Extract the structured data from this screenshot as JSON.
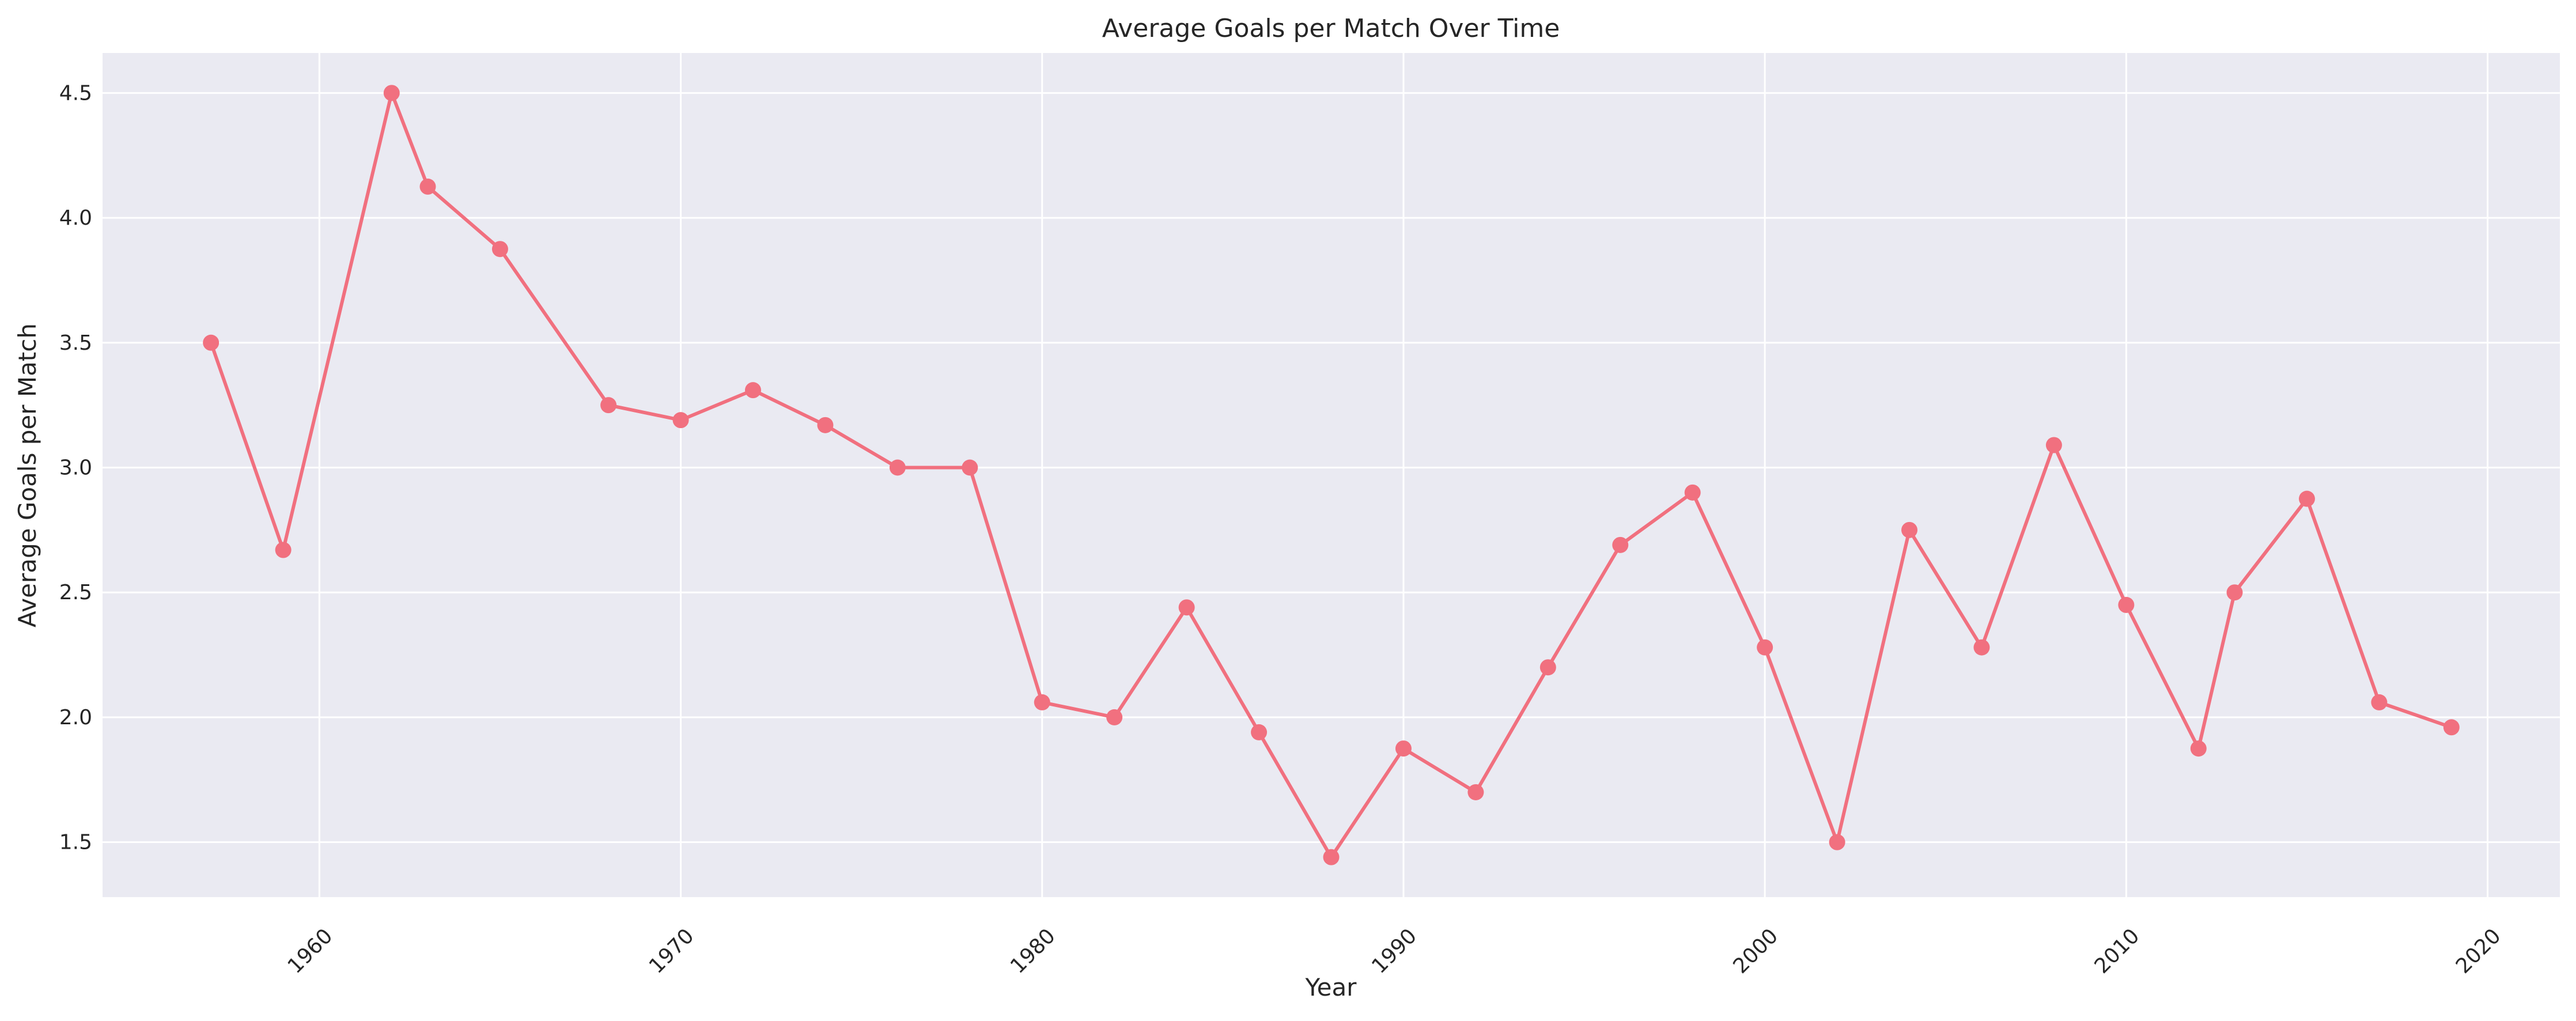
{
  "chart_data": {
    "type": "line",
    "title": "Average Goals per Match Over Time",
    "xlabel": "Year",
    "ylabel": "Average Goals per Match",
    "xlim": [
      1954,
      2022
    ],
    "ylim": [
      1.28,
      4.66
    ],
    "xticks": [
      1960,
      1970,
      1980,
      1990,
      2000,
      2010,
      2020
    ],
    "xtick_labels": [
      "1960",
      "1970",
      "1980",
      "1990",
      "2000",
      "2010",
      "2020"
    ],
    "yticks": [
      1.5,
      2.0,
      2.5,
      3.0,
      3.5,
      4.0,
      4.5
    ],
    "ytick_labels": [
      "1.5",
      "2.0",
      "2.5",
      "3.0",
      "3.5",
      "4.0",
      "4.5"
    ],
    "grid": true,
    "line_color": "#f1707f",
    "background_color": "#eaeaf2",
    "series": [
      {
        "x": [
          1957,
          1959,
          1962,
          1963,
          1965,
          1968,
          1970,
          1972,
          1974,
          1976,
          1978,
          1980,
          1982,
          1984,
          1986,
          1988,
          1990,
          1992,
          1994,
          1996,
          1998,
          2000,
          2002,
          2004,
          2006,
          2008,
          2010,
          2012,
          2013,
          2015,
          2017,
          2019
        ],
        "y": [
          3.5,
          2.67,
          4.5,
          4.125,
          3.875,
          3.25,
          3.19,
          3.31,
          3.17,
          3.0,
          3.0,
          2.06,
          2.0,
          2.44,
          1.94,
          1.44,
          1.875,
          1.7,
          2.2,
          2.69,
          2.9,
          2.28,
          1.5,
          2.75,
          2.28,
          3.09,
          2.45,
          1.875,
          2.5,
          2.875,
          2.06,
          1.96
        ]
      }
    ]
  }
}
